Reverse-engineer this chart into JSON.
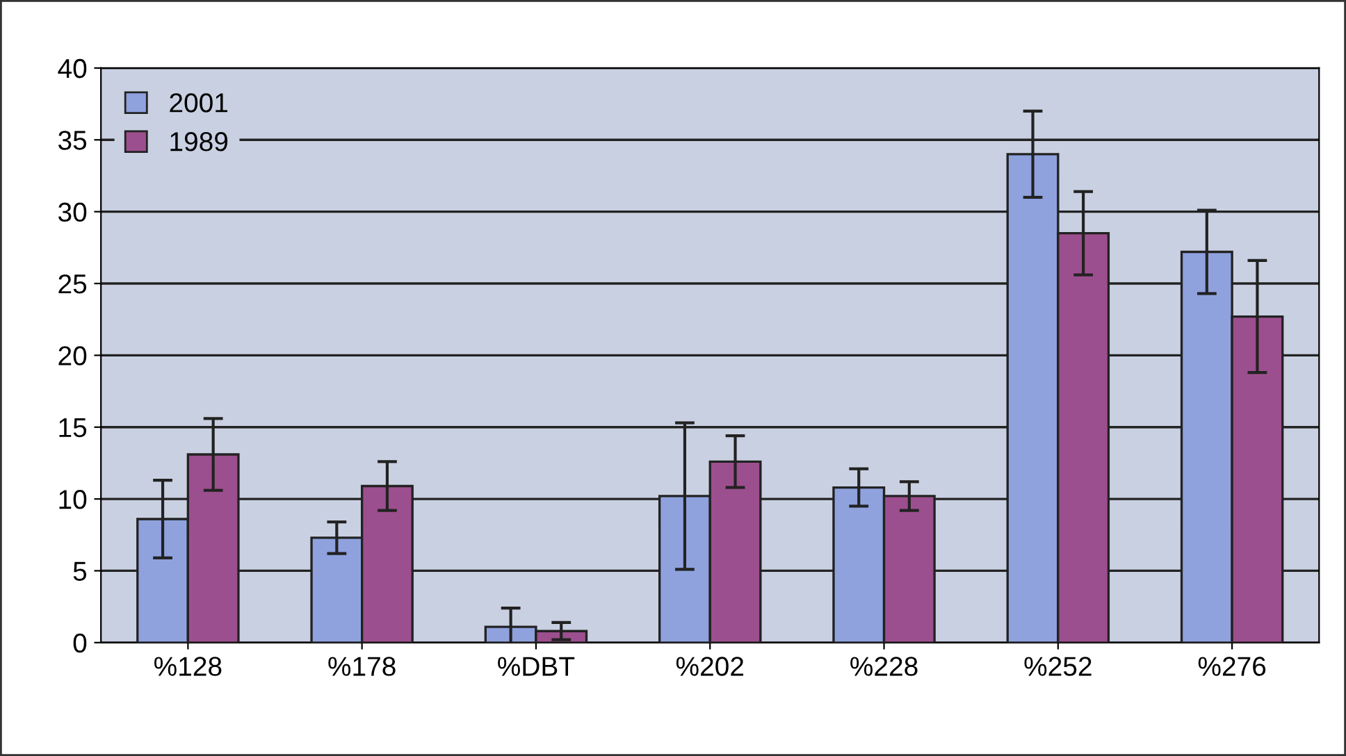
{
  "chart_data": {
    "type": "bar",
    "categories": [
      "%128",
      "%178",
      "%DBT",
      "%202",
      "%228",
      "%252",
      "%276"
    ],
    "series": [
      {
        "name": "2001",
        "color": "#8fa2de",
        "values": [
          8.6,
          7.3,
          1.1,
          10.2,
          10.8,
          34.0,
          27.2
        ],
        "errors": [
          2.7,
          1.1,
          1.3,
          5.1,
          1.3,
          3.0,
          2.9
        ]
      },
      {
        "name": "1989",
        "color": "#9c4f8e",
        "values": [
          13.1,
          10.9,
          0.8,
          12.6,
          10.2,
          28.5,
          22.7
        ],
        "errors": [
          2.5,
          1.7,
          0.6,
          1.8,
          1.0,
          2.9,
          3.9
        ]
      }
    ],
    "ylim": [
      0,
      40
    ],
    "yticks": [
      0,
      5,
      10,
      15,
      20,
      25,
      30,
      35,
      40
    ],
    "grid": "y",
    "legend": "top left"
  }
}
